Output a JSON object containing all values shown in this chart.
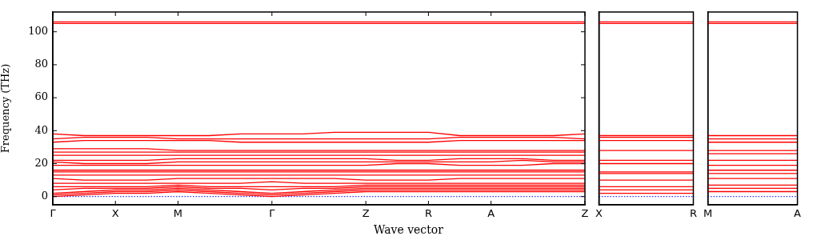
{
  "chart_data": [
    {
      "type": "line",
      "xlabel": "Wave vector",
      "ylabel": "Frequency (THz)",
      "categories": [
        "Γ",
        null,
        "X",
        null,
        "M",
        null,
        null,
        "Γ",
        null,
        null,
        "Z",
        null,
        "R",
        null,
        "A",
        null,
        null,
        "Z"
      ],
      "ylim": [
        -5,
        112
      ],
      "yticks": [
        0,
        20,
        40,
        60,
        80,
        100
      ],
      "marker": "none",
      "line_style": "solid",
      "ref_lines": [
        {
          "axis": "y",
          "value": 0,
          "color": "#0000ff",
          "line_style": "dotted"
        }
      ],
      "series": [
        {
          "color": "#ff0000",
          "values": [
            0,
            1,
            2,
            2,
            3,
            2,
            1,
            0,
            1,
            2,
            3,
            3,
            3,
            3,
            3,
            3,
            3,
            3
          ]
        },
        {
          "color": "#ff0000",
          "values": [
            1,
            2,
            3,
            3,
            4,
            3,
            2,
            1,
            2,
            3,
            4,
            4,
            4,
            4,
            4,
            4,
            4,
            4
          ]
        },
        {
          "color": "#ff0000",
          "values": [
            2,
            3,
            4,
            4,
            5,
            4,
            3,
            2,
            3,
            4,
            5,
            5,
            5,
            5,
            5,
            5,
            5,
            5
          ]
        },
        {
          "color": "#ff0000",
          "values": [
            4,
            5,
            5,
            5,
            6,
            5,
            5,
            4,
            5,
            5,
            6,
            6,
            6,
            6,
            6,
            6,
            6,
            6
          ]
        },
        {
          "color": "#ff0000",
          "values": [
            6,
            6,
            6,
            6,
            7,
            6,
            6,
            6,
            6,
            6,
            7,
            7,
            7,
            7,
            7,
            7,
            7,
            7
          ]
        },
        {
          "color": "#ff0000",
          "values": [
            8,
            8,
            8,
            8,
            8,
            8,
            8,
            9,
            8,
            8,
            8,
            8,
            8,
            8,
            8,
            8,
            8,
            8
          ]
        },
        {
          "color": "#ff0000",
          "values": [
            11,
            10,
            10,
            10,
            11,
            11,
            11,
            11,
            11,
            11,
            10,
            10,
            10,
            11,
            11,
            11,
            11,
            11
          ]
        },
        {
          "color": "#ff0000",
          "values": [
            13,
            13,
            13,
            13,
            13,
            13,
            13,
            13,
            13,
            13,
            13,
            13,
            13,
            13,
            13,
            13,
            13,
            13
          ]
        },
        {
          "color": "#ff0000",
          "values": [
            15,
            15,
            15,
            15,
            15,
            15,
            15,
            15,
            15,
            15,
            15,
            15,
            15,
            15,
            15,
            15,
            15,
            15
          ]
        },
        {
          "color": "#ff0000",
          "values": [
            16,
            16,
            16,
            16,
            16,
            16,
            16,
            16,
            16,
            16,
            16,
            16,
            16,
            16,
            16,
            16,
            16,
            16
          ]
        },
        {
          "color": "#ff0000",
          "values": [
            19,
            19,
            19,
            19,
            19,
            19,
            19,
            19,
            19,
            19,
            19,
            20,
            20,
            19,
            19,
            19,
            20,
            20
          ]
        },
        {
          "color": "#ff0000",
          "values": [
            21,
            20,
            20,
            20,
            21,
            21,
            21,
            21,
            21,
            21,
            21,
            21,
            21,
            21,
            21,
            22,
            21,
            21
          ]
        },
        {
          "color": "#ff0000",
          "values": [
            22,
            22,
            22,
            22,
            23,
            23,
            23,
            23,
            23,
            23,
            23,
            22,
            22,
            23,
            23,
            23,
            22,
            22
          ]
        },
        {
          "color": "#ff0000",
          "values": [
            25,
            25,
            25,
            25,
            25,
            25,
            25,
            25,
            25,
            25,
            25,
            25,
            25,
            25,
            25,
            25,
            25,
            25
          ]
        },
        {
          "color": "#ff0000",
          "values": [
            27,
            27,
            27,
            27,
            27,
            27,
            27,
            27,
            27,
            27,
            27,
            27,
            27,
            27,
            27,
            27,
            27,
            27
          ]
        },
        {
          "color": "#ff0000",
          "values": [
            29,
            29,
            29,
            29,
            28,
            28,
            28,
            28,
            28,
            28,
            28,
            28,
            28,
            28,
            28,
            28,
            28,
            28
          ]
        },
        {
          "color": "#ff0000",
          "values": [
            33,
            34,
            34,
            34,
            34,
            34,
            33,
            33,
            33,
            33,
            33,
            33,
            33,
            34,
            34,
            34,
            34,
            34
          ]
        },
        {
          "color": "#ff0000",
          "values": [
            35,
            36,
            36,
            36,
            35,
            35,
            35,
            35,
            35,
            35,
            35,
            35,
            35,
            36,
            36,
            36,
            36,
            35
          ]
        },
        {
          "color": "#ff0000",
          "values": [
            38,
            37,
            37,
            37,
            37,
            37,
            38,
            38,
            38,
            39,
            39,
            39,
            39,
            37,
            37,
            37,
            37,
            38
          ]
        },
        {
          "color": "#ff0000",
          "values": [
            105,
            105,
            105,
            105,
            105,
            105,
            105,
            105,
            105,
            105,
            105,
            105,
            105,
            105,
            105,
            105,
            105,
            105
          ]
        },
        {
          "color": "#ff0000",
          "values": [
            106,
            106,
            106,
            106,
            106,
            106,
            106,
            106,
            106,
            106,
            106,
            106,
            106,
            106,
            106,
            106,
            106,
            106
          ]
        }
      ]
    },
    {
      "type": "line",
      "categories": [
        "X",
        "R"
      ],
      "ylim": [
        -5,
        112
      ],
      "tick_labels": "x",
      "marker": "none",
      "line_style": "solid",
      "ref_lines": [
        {
          "axis": "y",
          "value": 0,
          "color": "#0000ff",
          "line_style": "dotted"
        }
      ],
      "series": [
        {
          "color": "#ff0000",
          "values": [
            2,
            2
          ]
        },
        {
          "color": "#ff0000",
          "values": [
            4,
            4
          ]
        },
        {
          "color": "#ff0000",
          "values": [
            6,
            6
          ]
        },
        {
          "color": "#ff0000",
          "values": [
            10,
            10
          ]
        },
        {
          "color": "#ff0000",
          "values": [
            14,
            14
          ]
        },
        {
          "color": "#ff0000",
          "values": [
            15,
            15
          ]
        },
        {
          "color": "#ff0000",
          "values": [
            20,
            20
          ]
        },
        {
          "color": "#ff0000",
          "values": [
            22,
            22
          ]
        },
        {
          "color": "#ff0000",
          "values": [
            28,
            28
          ]
        },
        {
          "color": "#ff0000",
          "values": [
            34,
            34
          ]
        },
        {
          "color": "#ff0000",
          "values": [
            36,
            36
          ]
        },
        {
          "color": "#ff0000",
          "values": [
            37,
            37
          ]
        },
        {
          "color": "#ff0000",
          "values": [
            105,
            105
          ]
        },
        {
          "color": "#ff0000",
          "values": [
            106,
            106
          ]
        }
      ]
    },
    {
      "type": "line",
      "categories": [
        "M",
        "A"
      ],
      "ylim": [
        -5,
        112
      ],
      "tick_labels": "x",
      "marker": "none",
      "line_style": "solid",
      "ref_lines": [
        {
          "axis": "y",
          "value": 0,
          "color": "#0000ff",
          "line_style": "dotted"
        }
      ],
      "series": [
        {
          "color": "#ff0000",
          "values": [
            3,
            3
          ]
        },
        {
          "color": "#ff0000",
          "values": [
            5,
            5
          ]
        },
        {
          "color": "#ff0000",
          "values": [
            7,
            7
          ]
        },
        {
          "color": "#ff0000",
          "values": [
            11,
            11
          ]
        },
        {
          "color": "#ff0000",
          "values": [
            14,
            14
          ]
        },
        {
          "color": "#ff0000",
          "values": [
            16,
            16
          ]
        },
        {
          "color": "#ff0000",
          "values": [
            19,
            19
          ]
        },
        {
          "color": "#ff0000",
          "values": [
            22,
            22
          ]
        },
        {
          "color": "#ff0000",
          "values": [
            26,
            26
          ]
        },
        {
          "color": "#ff0000",
          "values": [
            28,
            28
          ]
        },
        {
          "color": "#ff0000",
          "values": [
            33,
            33
          ]
        },
        {
          "color": "#ff0000",
          "values": [
            35,
            35
          ]
        },
        {
          "color": "#ff0000",
          "values": [
            37,
            37
          ]
        },
        {
          "color": "#ff0000",
          "values": [
            105,
            105
          ]
        },
        {
          "color": "#ff0000",
          "values": [
            106,
            106
          ]
        }
      ]
    }
  ]
}
